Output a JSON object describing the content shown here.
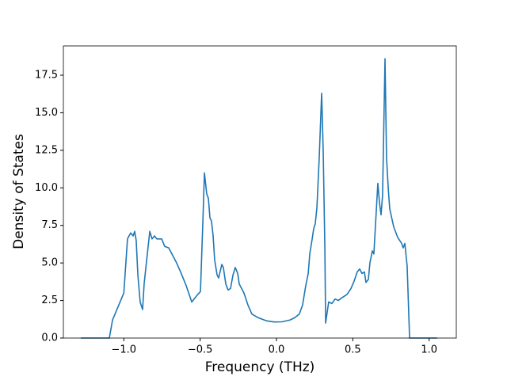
{
  "chart_data": {
    "type": "line",
    "xlabel": "Frequency (THz)",
    "ylabel": "Density of States",
    "xlim": [
      -1.396,
      1.178
    ],
    "ylim": [
      0,
      19.45
    ],
    "xticks": [
      {
        "value": -1,
        "label": "−1.0"
      },
      {
        "value": -0.5,
        "label": "−0.5"
      },
      {
        "value": 0,
        "label": "0.0"
      },
      {
        "value": 0.5,
        "label": "0.5"
      },
      {
        "value": 1,
        "label": "1.0"
      }
    ],
    "yticks": [
      {
        "value": 0,
        "label": "0.0"
      },
      2.5,
      {
        "value": 5,
        "label": "5.0"
      },
      7.5,
      {
        "value": 10,
        "label": "10.0"
      },
      12.5,
      {
        "value": 15,
        "label": "15.0"
      },
      17.5
    ],
    "series": [
      {
        "color": "#1f77b4",
        "x": [
          -1.282,
          -1.095,
          -1.074,
          -1.0,
          -0.976,
          -0.955,
          -0.939,
          -0.929,
          -0.919,
          -0.908,
          -0.893,
          -0.877,
          -0.867,
          -0.846,
          -0.83,
          -0.815,
          -0.799,
          -0.784,
          -0.752,
          -0.732,
          -0.706,
          -0.68,
          -0.654,
          -0.628,
          -0.592,
          -0.555,
          -0.524,
          -0.498,
          -0.483,
          -0.472,
          -0.457,
          -0.446,
          -0.436,
          -0.426,
          -0.415,
          -0.405,
          -0.389,
          -0.379,
          -0.358,
          -0.348,
          -0.332,
          -0.317,
          -0.301,
          -0.285,
          -0.27,
          -0.254,
          -0.244,
          -0.213,
          -0.187,
          -0.161,
          -0.119,
          -0.067,
          -0.016,
          0.036,
          0.088,
          0.119,
          0.15,
          0.171,
          0.192,
          0.208,
          0.218,
          0.234,
          0.244,
          0.254,
          0.265,
          0.28,
          0.296,
          0.306,
          0.317,
          0.322,
          0.342,
          0.363,
          0.384,
          0.405,
          0.431,
          0.462,
          0.488,
          0.509,
          0.529,
          0.545,
          0.56,
          0.576,
          0.586,
          0.602,
          0.612,
          0.628,
          0.638,
          0.654,
          0.664,
          0.675,
          0.685,
          0.695,
          0.711,
          0.721,
          0.732,
          0.742,
          0.768,
          0.794,
          0.82,
          0.83,
          0.841,
          0.856,
          0.872,
          1.053
        ],
        "values": [
          0,
          0,
          1.2,
          3.0,
          6.6,
          7.0,
          6.8,
          7.1,
          6.5,
          4.2,
          2.4,
          1.9,
          3.6,
          5.6,
          7.1,
          6.6,
          6.8,
          6.6,
          6.6,
          6.1,
          6.0,
          5.5,
          5.0,
          4.4,
          3.5,
          2.4,
          2.8,
          3.1,
          7.5,
          11.0,
          9.6,
          9.3,
          8.0,
          7.8,
          6.8,
          5.2,
          4.2,
          4.0,
          4.9,
          4.7,
          3.6,
          3.2,
          3.3,
          4.2,
          4.7,
          4.3,
          3.6,
          3.0,
          2.2,
          1.6,
          1.35,
          1.15,
          1.07,
          1.08,
          1.2,
          1.35,
          1.6,
          2.2,
          3.5,
          4.3,
          5.6,
          6.6,
          7.3,
          7.6,
          8.7,
          12.0,
          16.3,
          12.5,
          6.0,
          1.0,
          2.4,
          2.3,
          2.6,
          2.5,
          2.7,
          2.9,
          3.3,
          3.8,
          4.4,
          4.6,
          4.3,
          4.4,
          3.7,
          3.9,
          5.0,
          5.8,
          5.6,
          8.5,
          10.3,
          9.0,
          8.2,
          9.5,
          18.6,
          12.0,
          10.0,
          8.6,
          7.4,
          6.7,
          6.3,
          6.0,
          6.3,
          4.8,
          0,
          0
        ]
      }
    ]
  }
}
